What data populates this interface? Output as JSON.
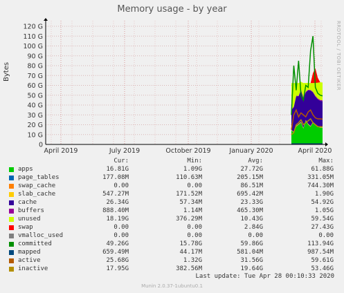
{
  "chart_data": {
    "type": "area",
    "title": "Memory usage - by year",
    "ylabel": "Bytes",
    "watermark": "RRDTOOL / TOBI OETIKER",
    "yticks": [
      "0",
      "10 G",
      "20 G",
      "30 G",
      "40 G",
      "50 G",
      "60 G",
      "70 G",
      "80 G",
      "90 G",
      "100 G",
      "110 G",
      "120 G"
    ],
    "xticks": [
      "April 2019",
      "July 2019",
      "October 2019",
      "January 2020",
      "April 2020"
    ],
    "ylim": [
      0,
      120
    ],
    "grid": true,
    "series": [
      {
        "name": "apps",
        "color": "#00cc00",
        "values": [
          14,
          12,
          18,
          20,
          22,
          16,
          24,
          20,
          18,
          22,
          20,
          18,
          17,
          16.8
        ]
      },
      {
        "name": "page_tables",
        "color": "#0066b3",
        "values": [
          0.2,
          0.2,
          0.2,
          0.2,
          0.2,
          0.2,
          0.2,
          0.2,
          0.2,
          0.2,
          0.2,
          0.2,
          0.2,
          0.2
        ]
      },
      {
        "name": "swap_cache",
        "color": "#ff8000",
        "values": [
          0,
          0,
          0,
          0,
          0,
          0,
          0,
          0,
          0,
          0,
          0,
          0,
          0,
          0
        ]
      },
      {
        "name": "slab_cache",
        "color": "#ffcc00",
        "values": [
          0.6,
          0.6,
          0.7,
          0.6,
          0.8,
          0.7,
          0.6,
          0.7,
          0.6,
          0.6,
          0.5,
          0.6,
          0.6,
          0.5
        ]
      },
      {
        "name": "cache",
        "color": "#330099",
        "values": [
          20,
          25,
          30,
          28,
          32,
          30,
          28,
          34,
          36,
          30,
          28,
          27,
          26.5,
          26.3
        ]
      },
      {
        "name": "buffers",
        "color": "#990099",
        "values": [
          0.5,
          0.5,
          0.6,
          0.5,
          0.6,
          0.5,
          0.7,
          0.6,
          0.5,
          0.6,
          0.7,
          0.9,
          0.9,
          0.9
        ]
      },
      {
        "name": "unused",
        "color": "#ccff00",
        "values": [
          27,
          24,
          13,
          13,
          8,
          15,
          9,
          7,
          7,
          9,
          13,
          16,
          18,
          18.2
        ]
      },
      {
        "name": "swap",
        "color": "#ff0000",
        "values": [
          0,
          0,
          0,
          0,
          0,
          0,
          0,
          0,
          0,
          10,
          15,
          5,
          0,
          0
        ]
      },
      {
        "name": "vmalloc_used",
        "color": "#808080",
        "values": [
          0,
          0,
          0,
          0,
          0,
          0,
          0,
          0,
          0,
          0,
          0,
          0,
          0,
          0
        ]
      },
      {
        "name": "committed",
        "color": "#008f00",
        "values": [
          30,
          80,
          55,
          85,
          50,
          45,
          60,
          58,
          95,
          110,
          58,
          52,
          50,
          49.3
        ]
      },
      {
        "name": "mapped",
        "color": "#00487d",
        "values": [
          0.6,
          0.6,
          0.6,
          0.6,
          0.6,
          0.6,
          0.6,
          0.6,
          0.6,
          0.6,
          0.6,
          0.6,
          0.6,
          0.7
        ]
      },
      {
        "name": "active",
        "color": "#b35a00",
        "values": [
          15,
          30,
          35,
          28,
          32,
          30,
          28,
          33,
          35,
          30,
          27,
          26,
          26,
          25.7
        ]
      },
      {
        "name": "inactive",
        "color": "#b38f00",
        "values": [
          10,
          12,
          20,
          22,
          25,
          20,
          22,
          24,
          26,
          22,
          20,
          18,
          18,
          18
        ]
      }
    ]
  },
  "legend": {
    "headers": {
      "cur": "Cur:",
      "min": "Min:",
      "avg": "Avg:",
      "max": "Max:"
    },
    "rows": [
      {
        "name": "apps",
        "color": "#00cc00",
        "cur": "16.81G",
        "min": "1.09G",
        "avg": "27.72G",
        "max": "61.88G"
      },
      {
        "name": "page_tables",
        "color": "#0066b3",
        "cur": "177.08M",
        "min": "110.63M",
        "avg": "205.15M",
        "max": "331.05M"
      },
      {
        "name": "swap_cache",
        "color": "#ff8000",
        "cur": "0.00",
        "min": "0.00",
        "avg": "86.51M",
        "max": "744.30M"
      },
      {
        "name": "slab_cache",
        "color": "#ffcc00",
        "cur": "547.27M",
        "min": "171.52M",
        "avg": "695.42M",
        "max": "1.90G"
      },
      {
        "name": "cache",
        "color": "#330099",
        "cur": "26.34G",
        "min": "57.34M",
        "avg": "23.33G",
        "max": "54.92G"
      },
      {
        "name": "buffers",
        "color": "#990099",
        "cur": "888.40M",
        "min": "1.14M",
        "avg": "465.30M",
        "max": "1.05G"
      },
      {
        "name": "unused",
        "color": "#ccff00",
        "cur": "18.19G",
        "min": "376.29M",
        "avg": "10.43G",
        "max": "59.54G"
      },
      {
        "name": "swap",
        "color": "#ff0000",
        "cur": "0.00",
        "min": "0.00",
        "avg": "2.84G",
        "max": "27.43G"
      },
      {
        "name": "vmalloc_used",
        "color": "#808080",
        "cur": "0.00",
        "min": "0.00",
        "avg": "0.00",
        "max": "0.00"
      },
      {
        "name": "committed",
        "color": "#008f00",
        "cur": "49.26G",
        "min": "15.78G",
        "avg": "59.86G",
        "max": "113.94G"
      },
      {
        "name": "mapped",
        "color": "#00487d",
        "cur": "659.49M",
        "min": "44.17M",
        "avg": "581.04M",
        "max": "987.54M"
      },
      {
        "name": "active",
        "color": "#b35a00",
        "cur": "25.68G",
        "min": "1.32G",
        "avg": "31.56G",
        "max": "59.61G"
      },
      {
        "name": "inactive",
        "color": "#b38f00",
        "cur": "17.95G",
        "min": "382.56M",
        "avg": "19.64G",
        "max": "53.46G"
      }
    ]
  },
  "last_update": "Last update: Tue Apr 28 00:10:33 2020",
  "footer": "Munin 2.0.37-1ubuntu0.1"
}
